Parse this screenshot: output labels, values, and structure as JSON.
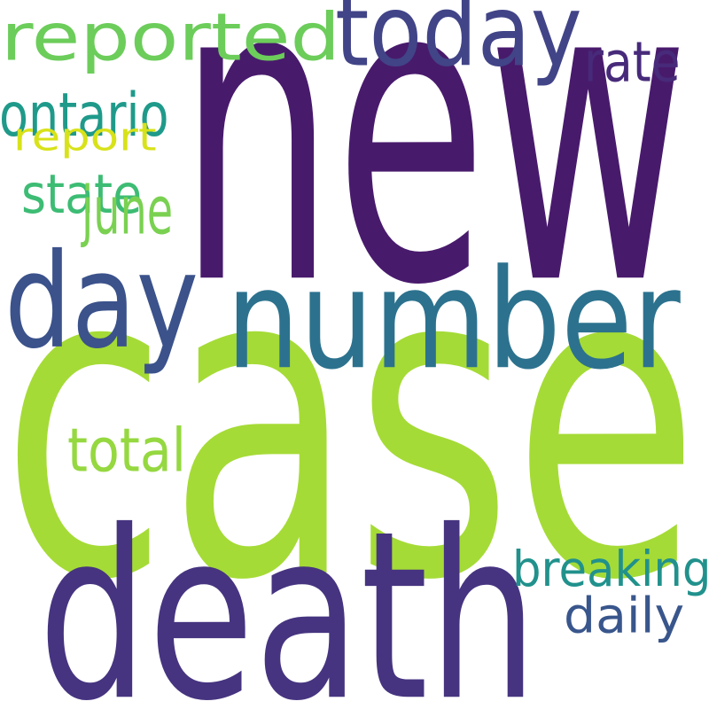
{
  "words": [
    {
      "text": "new",
      "color": "#481a6c"
    },
    {
      "text": "case",
      "color": "#a5db36"
    },
    {
      "text": "death",
      "color": "#463480"
    },
    {
      "text": "number",
      "color": "#2c728e"
    },
    {
      "text": "day",
      "color": "#3b528b"
    },
    {
      "text": "today",
      "color": "#414487"
    },
    {
      "text": "reported",
      "color": "#6ccd5a"
    },
    {
      "text": "breaking",
      "color": "#21918c"
    },
    {
      "text": "daily",
      "color": "#39568c"
    },
    {
      "text": "rate",
      "color": "#472a7a"
    },
    {
      "text": "ontario",
      "color": "#1f9a8a"
    },
    {
      "text": "report",
      "color": "#d8e219"
    },
    {
      "text": "state",
      "color": "#3dbc74"
    },
    {
      "text": "june",
      "color": "#7ad151"
    },
    {
      "text": "total",
      "color": "#95d840"
    }
  ]
}
